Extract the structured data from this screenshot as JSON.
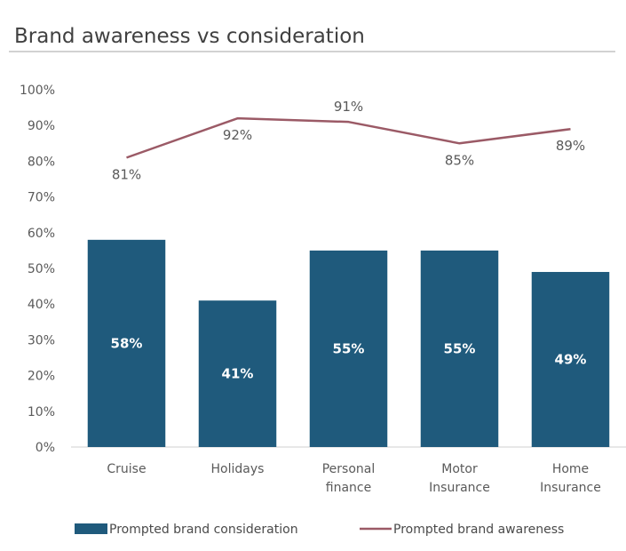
{
  "chart_data": {
    "type": "bar",
    "title": "Brand awareness vs consideration",
    "categories": [
      [
        "Cruise"
      ],
      [
        "Holidays"
      ],
      [
        "Personal",
        "finance"
      ],
      [
        "Motor",
        "Insurance"
      ],
      [
        "Home",
        "Insurance"
      ]
    ],
    "series": [
      {
        "name": "Prompted brand consideration",
        "type": "bar",
        "color": "#1f5a7c",
        "values": [
          58,
          41,
          55,
          55,
          49
        ],
        "labels": [
          "58%",
          "41%",
          "55%",
          "55%",
          "49%"
        ]
      },
      {
        "name": "Prompted brand awareness",
        "type": "line",
        "color": "#9b5a66",
        "values": [
          81,
          92,
          91,
          85,
          89
        ],
        "labels": [
          "81%",
          "92%",
          "91%",
          "85%",
          "89%"
        ]
      }
    ],
    "label_positions": [
      "below",
      "below",
      "above",
      "below",
      "below"
    ],
    "y_ticks": [
      "0%",
      "10%",
      "20%",
      "30%",
      "40%",
      "50%",
      "60%",
      "70%",
      "80%",
      "90%",
      "100%"
    ],
    "ylim": [
      0,
      100
    ],
    "xlabel": "",
    "ylabel": "",
    "grid": false,
    "legend": "bottom"
  }
}
